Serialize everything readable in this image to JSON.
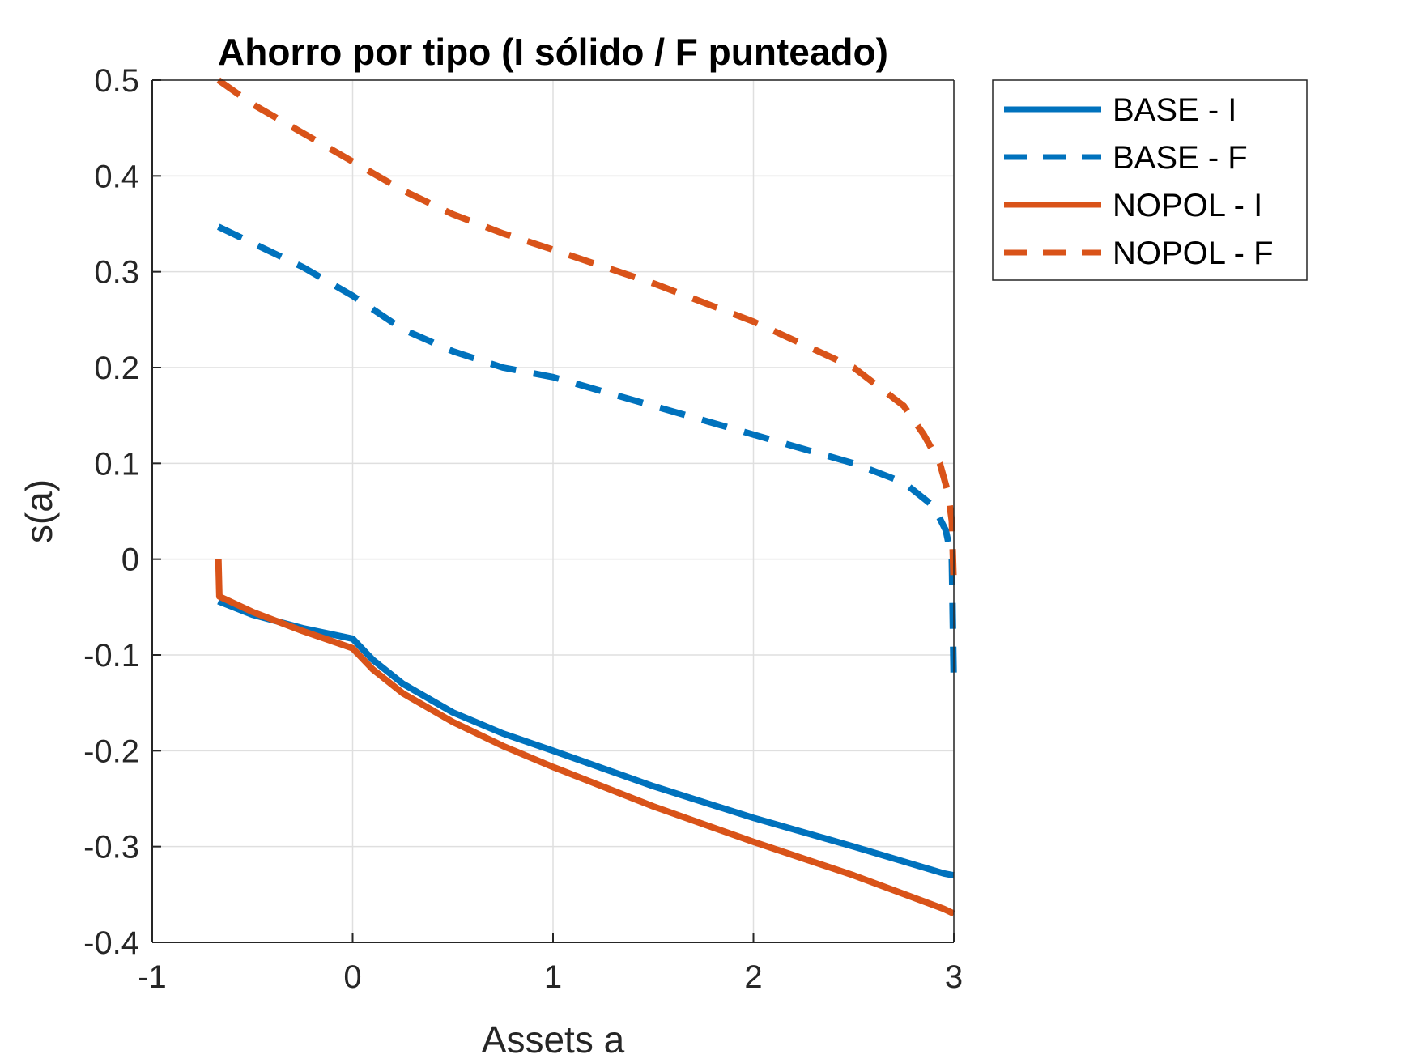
{
  "chart_data": {
    "type": "line",
    "title": "Ahorro por tipo (I sólido / F punteado)",
    "xlabel": "Assets a",
    "ylabel": "s(a)",
    "xlim": [
      -1,
      3
    ],
    "ylim": [
      -0.4,
      0.5
    ],
    "x_ticks": [
      -1,
      0,
      1,
      2,
      3
    ],
    "y_ticks": [
      -0.4,
      -0.3,
      -0.2,
      -0.1,
      0,
      0.1,
      0.2,
      0.3,
      0.4,
      0.5
    ],
    "x_tick_labels": [
      "-1",
      "0",
      "1",
      "2",
      "3"
    ],
    "y_tick_labels": [
      "-0.4",
      "-0.3",
      "-0.2",
      "-0.1",
      "0",
      "0.1",
      "0.2",
      "0.3",
      "0.4",
      "0.5"
    ],
    "grid": true,
    "legend_position": "outside-top-right",
    "series": [
      {
        "name": "BASE - I",
        "color": "#0072BD",
        "style": "solid",
        "x": [
          -0.67,
          -0.5,
          -0.25,
          0.0,
          0.1,
          0.25,
          0.5,
          0.75,
          1.0,
          1.5,
          2.0,
          2.5,
          2.95,
          3.0
        ],
        "y": [
          -0.044,
          -0.058,
          -0.072,
          -0.083,
          -0.105,
          -0.13,
          -0.16,
          -0.182,
          -0.2,
          -0.237,
          -0.27,
          -0.3,
          -0.328,
          -0.33
        ]
      },
      {
        "name": "BASE - F",
        "color": "#0072BD",
        "style": "dashed",
        "x": [
          -0.67,
          -0.5,
          -0.25,
          0.0,
          0.25,
          0.5,
          0.75,
          1.0,
          1.5,
          2.0,
          2.5,
          2.75,
          2.9,
          2.96,
          2.99,
          3.0
        ],
        "y": [
          0.347,
          0.33,
          0.305,
          0.275,
          0.24,
          0.217,
          0.2,
          0.19,
          0.16,
          0.13,
          0.1,
          0.08,
          0.055,
          0.03,
          0.0,
          -0.135
        ]
      },
      {
        "name": "NOPOL - I",
        "color": "#D95319",
        "style": "solid",
        "x": [
          -0.67,
          -0.665,
          -0.5,
          -0.25,
          0.0,
          0.1,
          0.25,
          0.5,
          0.75,
          1.0,
          1.5,
          2.0,
          2.5,
          2.95,
          3.0
        ],
        "y": [
          0.0,
          -0.039,
          -0.055,
          -0.075,
          -0.093,
          -0.115,
          -0.14,
          -0.17,
          -0.195,
          -0.217,
          -0.258,
          -0.295,
          -0.33,
          -0.365,
          -0.37
        ]
      },
      {
        "name": "NOPOL - F",
        "color": "#D95319",
        "style": "dashed",
        "x": [
          -0.67,
          -0.5,
          -0.25,
          0.0,
          0.25,
          0.5,
          0.75,
          1.0,
          1.5,
          2.0,
          2.5,
          2.75,
          2.85,
          2.93,
          2.97,
          2.99,
          3.0
        ],
        "y": [
          0.5,
          0.475,
          0.445,
          0.415,
          0.385,
          0.36,
          0.34,
          0.323,
          0.288,
          0.248,
          0.2,
          0.16,
          0.13,
          0.1,
          0.07,
          0.04,
          -0.03
        ]
      }
    ]
  }
}
